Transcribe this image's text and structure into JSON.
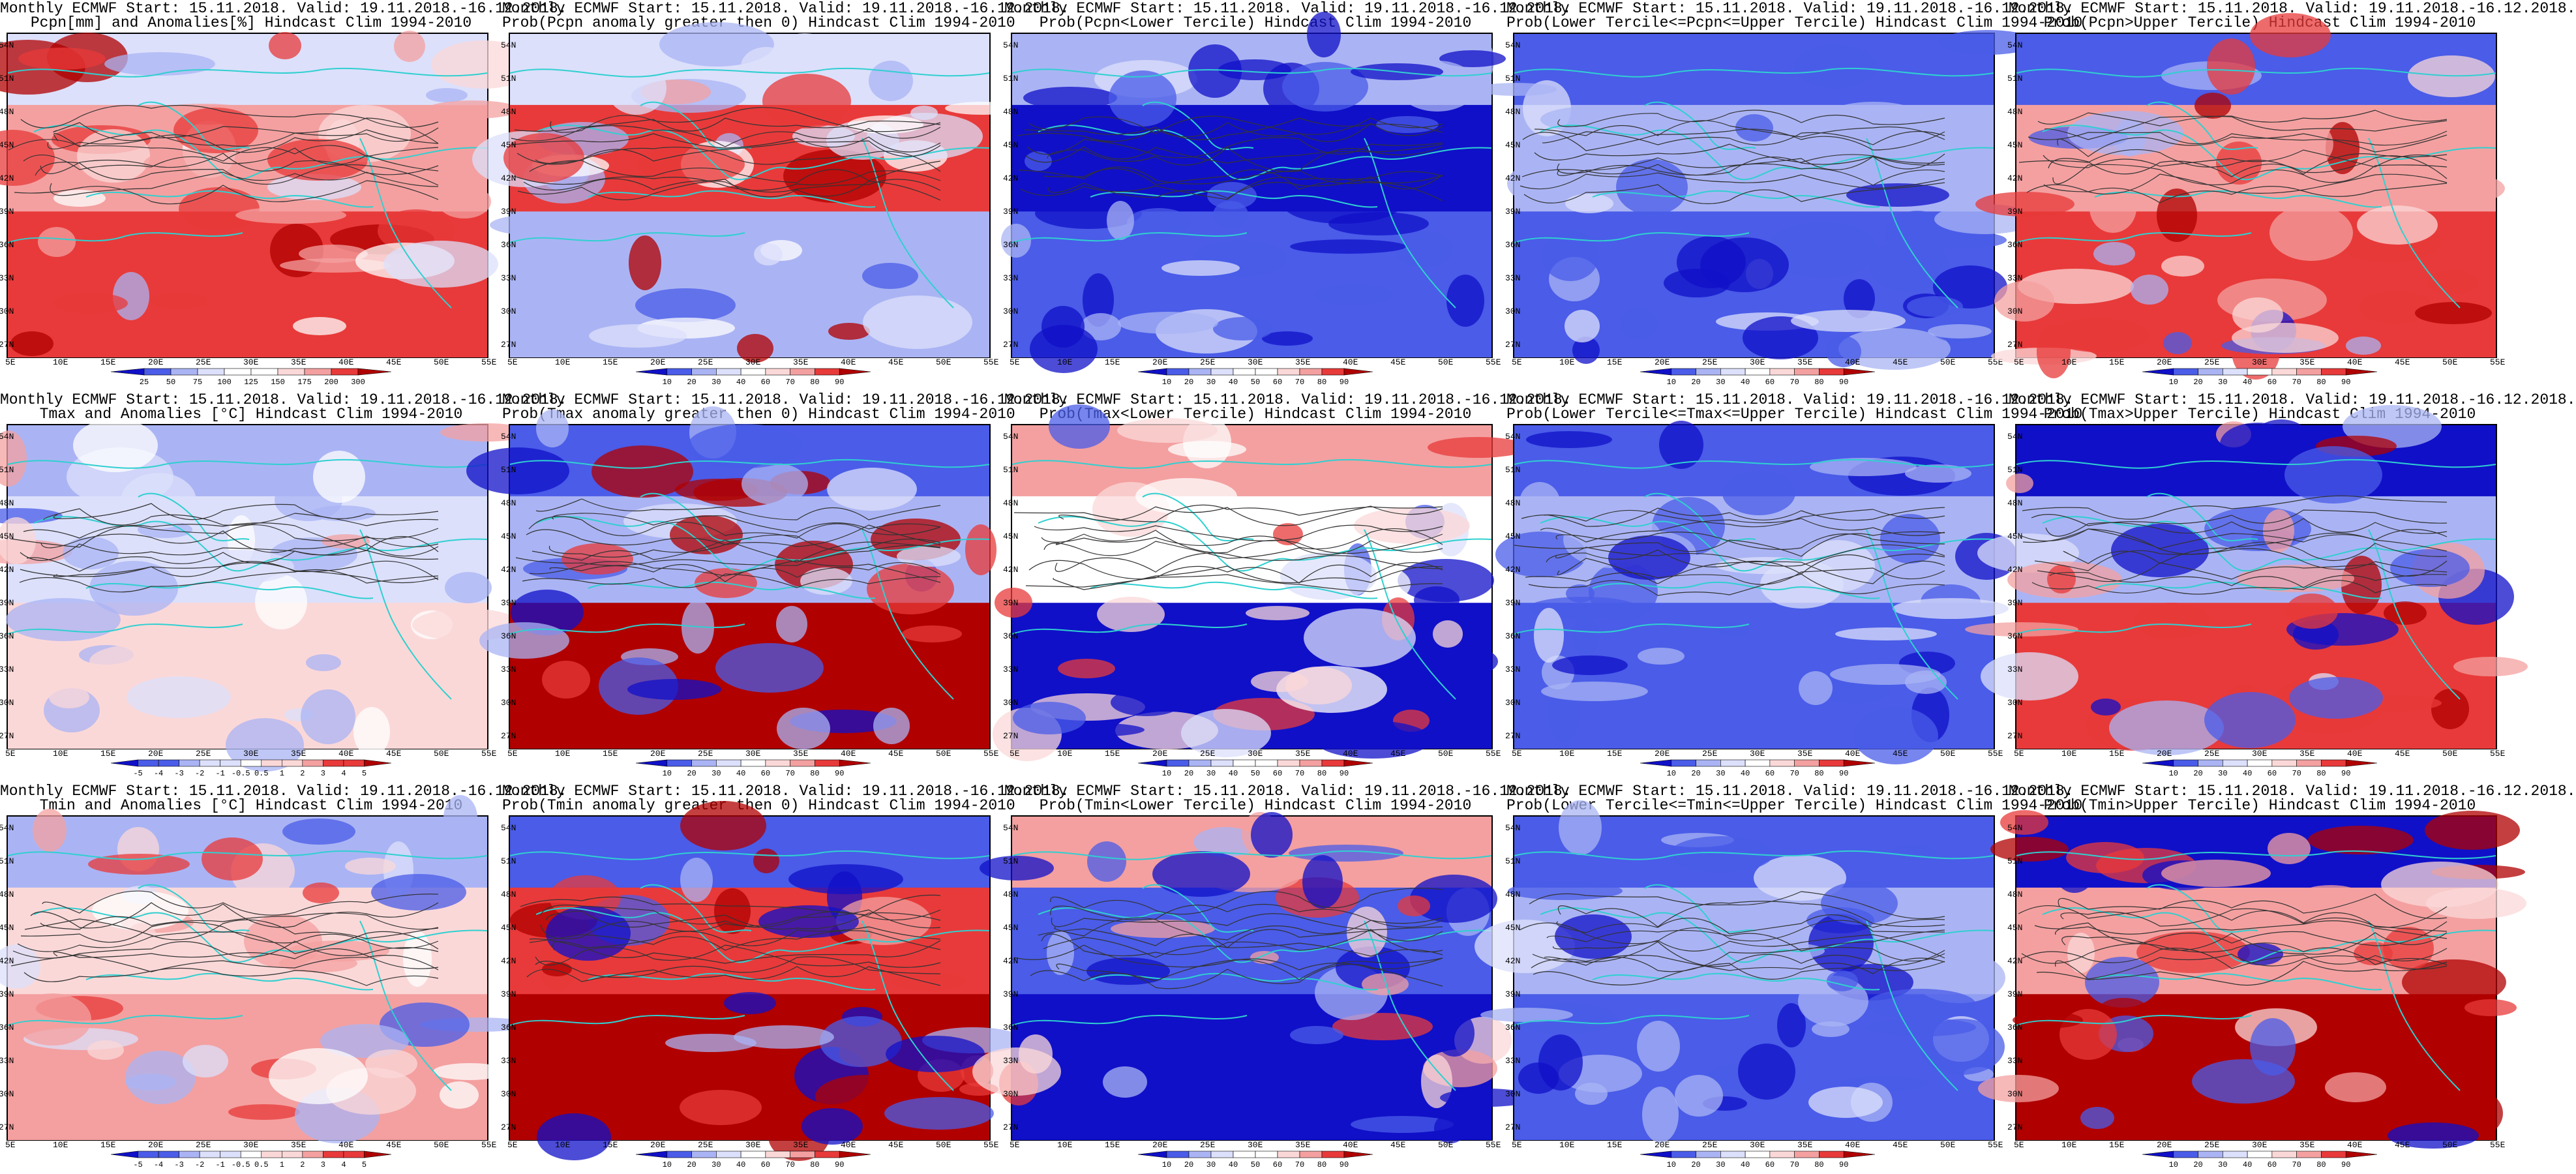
{
  "panels": [
    {
      "line1": "Monthly ECMWF Start: 15.11.2018. Valid: 19.11.2018.-16.12.2018.",
      "line2": "Pcpn[mm] and Anomalies[%] Hindcast Clim 1994-2010",
      "kind": "anom",
      "cbar_labels": [
        "25",
        "50",
        "75",
        "100",
        "125",
        "150",
        "175",
        "200",
        "300"
      ]
    },
    {
      "line1": "Monthly ECMWF Start: 15.11.2018. Valid: 19.11.2018.-16.12.2018.",
      "line2": "Prob(Pcpn anomaly greater then 0) Hindcast Clim 1994-2010",
      "kind": "prob",
      "cbar_labels": [
        "10",
        "20",
        "30",
        "40",
        "60",
        "70",
        "80",
        "90"
      ]
    },
    {
      "line1": "Monthly ECMWF Start: 15.11.2018. Valid: 19.11.2018.-16.12.2018.",
      "line2": "Prob(Pcpn<Lower Tercile) Hindcast Clim 1994-2010",
      "kind": "prob",
      "cbar_labels": [
        "10",
        "20",
        "30",
        "40",
        "50",
        "60",
        "70",
        "80",
        "90"
      ]
    },
    {
      "line1": "Monthly ECMWF Start: 15.11.2018. Valid: 19.11.2018.-16.12.2018.",
      "line2": "Prob(Lower Tercile<=Pcpn<=Upper Tercile) Hindcast Clim 1994-2010",
      "kind": "prob",
      "cbar_labels": [
        "10",
        "20",
        "30",
        "40",
        "60",
        "70",
        "80",
        "90"
      ]
    },
    {
      "line1": "Monthly ECMWF Start: 15.11.2018. Valid: 19.11.2018.-16.12.2018.",
      "line2": "Prob(Pcpn>Upper Tercile) Hindcast Clim 1994-2010",
      "kind": "prob",
      "cbar_labels": [
        "10",
        "20",
        "30",
        "40",
        "60",
        "70",
        "80",
        "90"
      ]
    },
    {
      "line1": "Monthly ECMWF Start: 15.11.2018. Valid: 19.11.2018.-16.12.2018.",
      "line2": "Tmax and Anomalies [°C] Hindcast Clim 1994-2010",
      "kind": "anom",
      "cbar_labels": [
        "-5",
        "-4",
        "-3",
        "-2",
        "-1",
        "-0.5",
        "0.5",
        "1",
        "2",
        "3",
        "4",
        "5"
      ]
    },
    {
      "line1": "Monthly ECMWF Start: 15.11.2018. Valid: 19.11.2018.-16.12.2018.",
      "line2": "Prob(Tmax anomaly greater then 0) Hindcast Clim 1994-2010",
      "kind": "prob",
      "cbar_labels": [
        "10",
        "20",
        "30",
        "40",
        "60",
        "70",
        "80",
        "90"
      ]
    },
    {
      "line1": "Monthly ECMWF Start: 15.11.2018. Valid: 19.11.2018.-16.12.2018.",
      "line2": "Prob(Tmax<Lower Tercile) Hindcast Clim 1994-2010",
      "kind": "prob",
      "cbar_labels": [
        "10",
        "20",
        "30",
        "40",
        "50",
        "60",
        "70",
        "80",
        "90"
      ]
    },
    {
      "line1": "Monthly ECMWF Start: 15.11.2018. Valid: 19.11.2018.-16.12.2018.",
      "line2": "Prob(Lower Tercile<=Tmax<=Upper Tercile) Hindcast Clim 1994-2010",
      "kind": "prob",
      "cbar_labels": [
        "10",
        "20",
        "30",
        "40",
        "60",
        "70",
        "80",
        "90"
      ]
    },
    {
      "line1": "Monthly ECMWF Start: 15.11.2018. Valid: 19.11.2018.-16.12.2018.",
      "line2": "Prob(Tmax>Upper Tercile) Hindcast Clim 1994-2010",
      "kind": "prob",
      "cbar_labels": [
        "10",
        "20",
        "30",
        "40",
        "60",
        "70",
        "80",
        "90"
      ]
    },
    {
      "line1": "Monthly ECMWF Start: 15.11.2018. Valid: 19.11.2018.-16.12.2018.",
      "line2": "Tmin and Anomalies [°C] Hindcast Clim 1994-2010",
      "kind": "anom",
      "cbar_labels": [
        "-5",
        "-4",
        "-3",
        "-2",
        "-1",
        "-0.5",
        "0.5",
        "1",
        "2",
        "3",
        "4",
        "5"
      ]
    },
    {
      "line1": "Monthly ECMWF Start: 15.11.2018. Valid: 19.11.2018.-16.12.2018.",
      "line2": "Prob(Tmin anomaly greater then 0) Hindcast Clim 1994-2010",
      "kind": "prob",
      "cbar_labels": [
        "10",
        "20",
        "30",
        "40",
        "60",
        "70",
        "80",
        "90"
      ]
    },
    {
      "line1": "Monthly ECMWF Start: 15.11.2018. Valid: 19.11.2018.-16.12.2018.",
      "line2": "Prob(Tmin<Lower Tercile) Hindcast Clim 1994-2010",
      "kind": "prob",
      "cbar_labels": [
        "10",
        "20",
        "30",
        "40",
        "50",
        "60",
        "70",
        "80",
        "90"
      ]
    },
    {
      "line1": "Monthly ECMWF Start: 15.11.2018. Valid: 19.11.2018.-16.12.2018.",
      "line2": "Prob(Lower Tercile<=Tmin<=Upper Tercile) Hindcast Clim 1994-2010",
      "kind": "prob",
      "cbar_labels": [
        "10",
        "20",
        "30",
        "40",
        "60",
        "70",
        "80",
        "90"
      ]
    },
    {
      "line1": "Monthly ECMWF Start: 15.11.2018. Valid: 19.11.2018.-16.12.2018.",
      "line2": "Prob(Tmin>Upper Tercile) Hindcast Clim 1994-2010",
      "kind": "prob",
      "cbar_labels": [
        "10",
        "20",
        "30",
        "40",
        "60",
        "70",
        "80",
        "90"
      ]
    }
  ],
  "axes": {
    "lat_labels": [
      "54N",
      "51N",
      "48N",
      "45N",
      "42N",
      "39N",
      "36N",
      "33N",
      "30N",
      "27N"
    ],
    "lon_labels": [
      "5E",
      "10E",
      "15E",
      "20E",
      "25E",
      "30E",
      "35E",
      "40E",
      "45E",
      "50E",
      "55E"
    ]
  },
  "colors": {
    "deep_blue": "#1010c8",
    "mid_blue": "#4a5ce8",
    "light_blue": "#aab4f4",
    "pale_blue": "#dce0fb",
    "white": "#ffffff",
    "pale_red": "#fbd8d8",
    "light_red": "#f4a0a0",
    "mid_red": "#e83a3a",
    "deep_red": "#b00000",
    "coast": "#2fd0d0",
    "contour": "#333333"
  }
}
